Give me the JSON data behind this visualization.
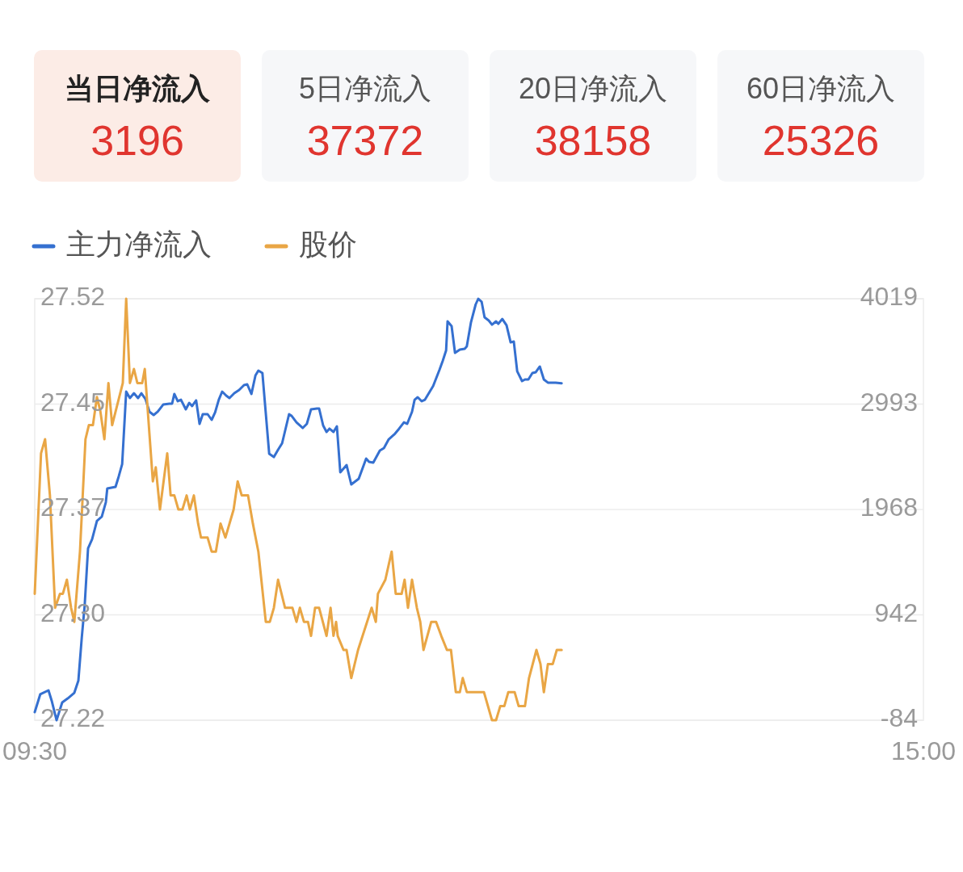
{
  "chart_data": [
    {
      "type": "other",
      "categories": [
        "当日净流入",
        "5日净流入",
        "20日净流入",
        "60日净流入"
      ],
      "values": [
        3196,
        37372,
        38158,
        25326
      ],
      "colors": [
        "#fcece6",
        "#f6f7f9",
        "#f6f7f9",
        "#f6f7f9"
      ],
      "data_labels": true
    },
    {
      "type": "line",
      "xlim": [
        9.5,
        15
      ],
      "xticks": [
        {
          "value": 9.5,
          "label": "09:30"
        },
        {
          "value": 15,
          "label": "15:00"
        }
      ],
      "ylim": [
        27.22,
        27.52
      ],
      "yticks": [
        27.22,
        {
          "value": 27.295,
          "label": "27.30"
        },
        27.37,
        {
          "value": 27.445,
          "label": "27.45"
        },
        27.52
      ],
      "y2lim": [
        -84,
        4019
      ],
      "y2ticks": [
        -84,
        942,
        1968,
        {
          "value": 2993.25,
          "label": "2993"
        },
        4019
      ],
      "grid": "y",
      "legend": "top left",
      "line_style": "solid",
      "marker": "none",
      "series": [
        {
          "name": "主力净流入",
          "color": "#3570d0",
          "axis": "y2",
          "x": [
            9.5,
            9.534,
            9.585,
            9.605,
            9.635,
            9.67,
            9.704,
            9.745,
            9.77,
            9.791,
            9.809,
            9.83,
            9.855,
            9.885,
            9.915,
            9.94,
            9.949,
            10.0,
            10.02,
            10.041,
            10.066,
            10.089,
            10.114,
            10.139,
            10.16,
            10.185,
            10.21,
            10.236,
            10.261,
            10.295,
            10.334,
            10.35,
            10.364,
            10.385,
            10.405,
            10.435,
            10.456,
            10.474,
            10.499,
            10.52,
            10.54,
            10.57,
            10.595,
            10.616,
            10.639,
            10.66,
            10.685,
            10.705,
            10.735,
            10.765,
            10.795,
            10.815,
            10.841,
            10.866,
            10.884,
            10.909,
            10.951,
            10.98,
            11.006,
            11.031,
            11.074,
            11.09,
            11.12,
            11.159,
            11.184,
            11.21,
            11.246,
            11.26,
            11.285,
            11.306,
            11.324,
            11.349,
            11.37,
            11.391,
            11.43,
            11.459,
            11.505,
            11.551,
            11.569,
            11.595,
            11.636,
            11.661,
            11.691,
            11.73,
            11.755,
            11.785,
            11.805,
            11.835,
            11.851,
            11.87,
            11.895,
            11.915,
            11.966,
            12.005,
            12.025,
            12.046,
            12.055,
            12.08,
            12.101,
            12.131,
            12.161,
            12.174,
            12.2,
            12.229,
            12.245,
            12.266,
            12.284,
            12.31,
            12.33,
            12.355,
            12.369,
            12.394,
            12.42,
            12.445,
            12.465,
            12.486,
            12.516,
            12.534,
            12.555,
            12.58,
            12.601,
            12.626,
            12.651,
            12.676,
            12.724,
            12.761
          ],
          "values": [
            -5,
            168,
            207,
            105,
            -84,
            89,
            128,
            183,
            301,
            718,
            1032,
            1590,
            1677,
            1857,
            1897,
            2038,
            2172,
            2188,
            2290,
            2408,
            3115,
            3052,
            3099,
            3052,
            3099,
            3044,
            2919,
            2887,
            2919,
            2989,
            2997,
            2997,
            3092,
            3021,
            3036,
            2942,
            3005,
            2974,
            3029,
            2801,
            2895,
            2895,
            2840,
            2911,
            3036,
            3115,
            3076,
            3052,
            3099,
            3131,
            3178,
            3186,
            3092,
            3272,
            3319,
            3296,
            2510,
            2478,
            2549,
            2612,
            2895,
            2879,
            2816,
            2761,
            2801,
            2942,
            2950,
            2950,
            2785,
            2722,
            2754,
            2722,
            2777,
            2329,
            2400,
            2211,
            2266,
            2463,
            2431,
            2423,
            2541,
            2565,
            2651,
            2706,
            2754,
            2816,
            2801,
            2919,
            3036,
            3060,
            3021,
            3036,
            3170,
            3327,
            3414,
            3516,
            3799,
            3752,
            3492,
            3524,
            3532,
            3555,
            3791,
            3964,
            4019,
            3988,
            3838,
            3807,
            3767,
            3799,
            3775,
            3822,
            3760,
            3595,
            3602,
            3312,
            3217,
            3233,
            3233,
            3296,
            3304,
            3359,
            3233,
            3202,
            3202,
            3196
          ]
        },
        {
          "name": "股价",
          "color": "#e9a645",
          "axis": "y",
          "x": [
            9.5,
            9.539,
            9.564,
            9.594,
            9.626,
            9.656,
            9.674,
            9.699,
            9.725,
            9.745,
            9.78,
            9.814,
            9.835,
            9.86,
            9.885,
            9.906,
            9.931,
            9.956,
            9.979,
            10.045,
            10.066,
            10.089,
            10.114,
            10.135,
            10.165,
            10.181,
            10.206,
            10.231,
            10.249,
            10.275,
            10.32,
            10.341,
            10.364,
            10.389,
            10.414,
            10.44,
            10.46,
            10.485,
            10.511,
            10.529,
            10.57,
            10.595,
            10.621,
            10.65,
            10.68,
            10.731,
            10.756,
            10.781,
            10.82,
            10.85,
            10.884,
            10.93,
            10.955,
            10.98,
            11.006,
            11.049,
            11.095,
            11.12,
            11.141,
            11.166,
            11.191,
            11.21,
            11.235,
            11.26,
            11.306,
            11.331,
            11.349,
            11.365,
            11.375,
            11.411,
            11.43,
            11.459,
            11.501,
            11.585,
            11.611,
            11.624,
            11.67,
            11.709,
            11.734,
            11.771,
            11.789,
            11.81,
            11.835,
            11.865,
            11.886,
            11.906,
            11.954,
            11.984,
            12.016,
            12.051,
            12.076,
            12.106,
            12.131,
            12.149,
            12.174,
            12.28,
            12.33,
            12.355,
            12.381,
            12.406,
            12.431,
            12.47,
            12.495,
            12.534,
            12.559,
            12.605,
            12.63,
            12.651,
            12.676,
            12.706,
            12.731,
            12.761
          ],
          "values": [
            27.31,
            27.41,
            27.42,
            27.38,
            27.3,
            27.31,
            27.31,
            27.32,
            27.3,
            27.29,
            27.34,
            27.42,
            27.43,
            27.43,
            27.45,
            27.44,
            27.42,
            27.46,
            27.43,
            27.46,
            27.52,
            27.46,
            27.47,
            27.46,
            27.46,
            27.47,
            27.43,
            27.39,
            27.4,
            27.37,
            27.41,
            27.38,
            27.38,
            27.37,
            27.37,
            27.38,
            27.37,
            27.38,
            27.36,
            27.35,
            27.35,
            27.34,
            27.34,
            27.36,
            27.35,
            27.37,
            27.39,
            27.38,
            27.38,
            27.36,
            27.34,
            27.29,
            27.29,
            27.3,
            27.32,
            27.3,
            27.3,
            27.29,
            27.3,
            27.29,
            27.29,
            27.28,
            27.3,
            27.3,
            27.28,
            27.3,
            27.28,
            27.29,
            27.28,
            27.27,
            27.27,
            27.25,
            27.27,
            27.3,
            27.29,
            27.31,
            27.32,
            27.34,
            27.31,
            27.31,
            27.32,
            27.3,
            27.32,
            27.3,
            27.29,
            27.27,
            27.29,
            27.29,
            27.28,
            27.27,
            27.27,
            27.24,
            27.24,
            27.25,
            27.24,
            27.24,
            27.22,
            27.22,
            27.23,
            27.23,
            27.24,
            27.24,
            27.23,
            27.23,
            27.25,
            27.27,
            27.26,
            27.24,
            27.26,
            27.26,
            27.27,
            27.27
          ]
        }
      ]
    }
  ]
}
